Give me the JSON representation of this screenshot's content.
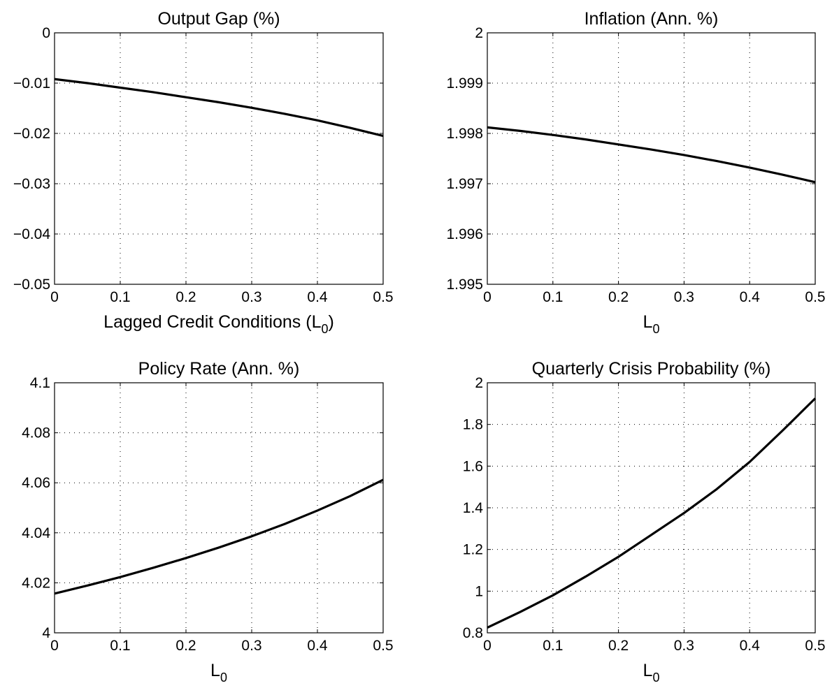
{
  "chart_data": [
    {
      "type": "line",
      "title": "Output Gap (%)",
      "xlabel": "Lagged Credit Conditions (L",
      "xlabel_subscript": "0",
      "xlabel_suffix": ")",
      "xlim": [
        0,
        0.5
      ],
      "ylim": [
        -0.05,
        0
      ],
      "xticks": [
        "0",
        "0.1",
        "0.2",
        "0.3",
        "0.4",
        "0.5"
      ],
      "yticks": [
        "−0.05",
        "−0.04",
        "−0.03",
        "−0.02",
        "−0.01",
        "0"
      ],
      "grid": true,
      "series": [
        {
          "x": [
            0,
            0.05,
            0.1,
            0.15,
            0.2,
            0.25,
            0.3,
            0.35,
            0.4,
            0.45,
            0.5
          ],
          "values": [
            -0.0092,
            -0.01,
            -0.0109,
            -0.0118,
            -0.0128,
            -0.0138,
            -0.0149,
            -0.0161,
            -0.0174,
            -0.0189,
            -0.0205
          ]
        }
      ]
    },
    {
      "type": "line",
      "title": "Inflation (Ann. %)",
      "xlabel": "L",
      "xlabel_subscript": "0",
      "xlabel_suffix": "",
      "xlim": [
        0,
        0.5
      ],
      "ylim": [
        1.995,
        2.0
      ],
      "xticks": [
        "0",
        "0.1",
        "0.2",
        "0.3",
        "0.4",
        "0.5"
      ],
      "yticks": [
        "1.995",
        "1.996",
        "1.997",
        "1.998",
        "1.999",
        "2"
      ],
      "grid": true,
      "series": [
        {
          "x": [
            0,
            0.05,
            0.1,
            0.15,
            0.2,
            0.25,
            0.3,
            0.35,
            0.4,
            0.45,
            0.5
          ],
          "values": [
            1.99812,
            1.99805,
            1.99797,
            1.99788,
            1.99778,
            1.99768,
            1.99757,
            1.99745,
            1.99732,
            1.99718,
            1.99703
          ]
        }
      ]
    },
    {
      "type": "line",
      "title": "Policy Rate (Ann. %)",
      "xlabel": "L",
      "xlabel_subscript": "0",
      "xlabel_suffix": "",
      "xlim": [
        0,
        0.5
      ],
      "ylim": [
        4.0,
        4.1
      ],
      "xticks": [
        "0",
        "0.1",
        "0.2",
        "0.3",
        "0.4",
        "0.5"
      ],
      "yticks": [
        "4",
        "4.02",
        "4.04",
        "4.06",
        "4.08",
        "4.1"
      ],
      "grid": true,
      "series": [
        {
          "x": [
            0,
            0.05,
            0.1,
            0.15,
            0.2,
            0.25,
            0.3,
            0.35,
            0.4,
            0.45,
            0.5
          ],
          "values": [
            4.0157,
            4.0189,
            4.0223,
            4.026,
            4.0299,
            4.0341,
            4.0386,
            4.0435,
            4.0489,
            4.0547,
            4.0612
          ]
        }
      ]
    },
    {
      "type": "line",
      "title": "Quarterly Crisis Probability (%)",
      "xlabel": "L",
      "xlabel_subscript": "0",
      "xlabel_suffix": "",
      "xlim": [
        0,
        0.5
      ],
      "ylim": [
        0.8,
        2.0
      ],
      "xticks": [
        "0",
        "0.1",
        "0.2",
        "0.3",
        "0.4",
        "0.5"
      ],
      "yticks": [
        "0.8",
        "1",
        "1.2",
        "1.4",
        "1.6",
        "1.8",
        "2"
      ],
      "grid": true,
      "series": [
        {
          "x": [
            0,
            0.05,
            0.1,
            0.15,
            0.2,
            0.25,
            0.3,
            0.35,
            0.4,
            0.45,
            0.5
          ],
          "values": [
            0.825,
            0.9,
            0.98,
            1.07,
            1.165,
            1.27,
            1.375,
            1.49,
            1.62,
            1.77,
            1.925
          ]
        }
      ]
    }
  ]
}
